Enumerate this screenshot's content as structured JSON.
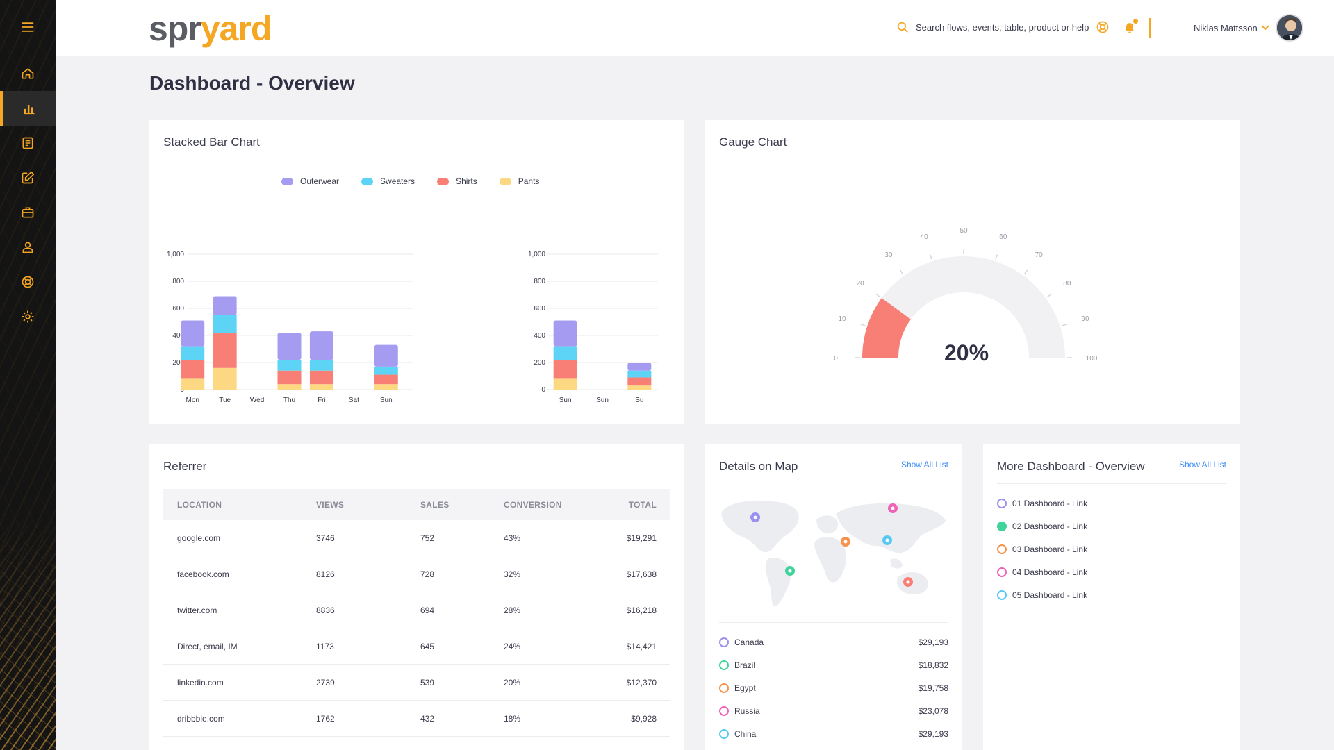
{
  "brand": {
    "part1": "spr",
    "part2": "yard",
    "accent": "#f5a623"
  },
  "header": {
    "search_placeholder": "Search flows, events, table, product or help",
    "user_name": "Niklas Mattsson"
  },
  "sidebar": {
    "items": [
      {
        "icon": "home-icon"
      },
      {
        "icon": "bar-chart-icon",
        "active": true
      },
      {
        "icon": "document-icon"
      },
      {
        "icon": "edit-icon"
      },
      {
        "icon": "briefcase-icon"
      },
      {
        "icon": "user-icon"
      },
      {
        "icon": "support-icon"
      },
      {
        "icon": "gear-icon"
      }
    ]
  },
  "page_title": "Dashboard - Overview",
  "stacked_card": {
    "title": "Stacked Bar Chart"
  },
  "gauge_card": {
    "title": "Gauge Chart"
  },
  "referrer": {
    "title": "Referrer",
    "columns": [
      "LOCATION",
      "VIEWS",
      "SALES",
      "CONVERSION",
      "TOTAL"
    ],
    "rows": [
      [
        "google.com",
        "3746",
        "752",
        "43%",
        "$19,291"
      ],
      [
        "facebook.com",
        "8126",
        "728",
        "32%",
        "$17,638"
      ],
      [
        "twitter.com",
        "8836",
        "694",
        "28%",
        "$16,218"
      ],
      [
        "Direct, email, IM",
        "1173",
        "645",
        "24%",
        "$14,421"
      ],
      [
        "linkedin.com",
        "2739",
        "539",
        "20%",
        "$12,370"
      ],
      [
        "dribbble.com",
        "1762",
        "432",
        "18%",
        "$9,928"
      ]
    ]
  },
  "map_card": {
    "title": "Details on Map",
    "show_all": "Show All List",
    "countries": [
      {
        "name": "Canada",
        "value": "$29,193",
        "color": "#9b91f0"
      },
      {
        "name": "Brazil",
        "value": "$18,832",
        "color": "#40d39b"
      },
      {
        "name": "Egypt",
        "value": "$19,758",
        "color": "#f7934c"
      },
      {
        "name": "Russia",
        "value": "$23,078",
        "color": "#f062b7"
      },
      {
        "name": "China",
        "value": "$29,193",
        "color": "#57c9f2"
      }
    ]
  },
  "more_card": {
    "title": "More Dashboard - Overview",
    "show_all": "Show All List",
    "links": [
      {
        "label": "01 Dashboard - Link",
        "color": "#9b91f0",
        "filled": false
      },
      {
        "label": "02 Dashboard - Link",
        "color": "#40d39b",
        "filled": true
      },
      {
        "label": "03 Dashboard - Link",
        "color": "#f7934c",
        "filled": false
      },
      {
        "label": "04 Dashboard - Link",
        "color": "#f062b7",
        "filled": false
      },
      {
        "label": "05 Dashboard - Link",
        "color": "#57c9f2",
        "filled": false
      }
    ]
  },
  "chart_data": [
    {
      "type": "bar",
      "stacked": true,
      "title": "Stacked Bar Chart",
      "legend": [
        "Outerwear",
        "Sweaters",
        "Shirts",
        "Pants"
      ],
      "legend_placement": "top",
      "colors": [
        "#a59cf2",
        "#5dd4f5",
        "#f77f75",
        "#fdd882"
      ],
      "ylim": [
        0,
        1000
      ],
      "yticks": [
        "0",
        "200",
        "400",
        "600",
        "800",
        "1,000"
      ],
      "grid": true,
      "categories": [
        "Mon",
        "Tue",
        "Wed",
        "Thu",
        "Fri",
        "Sat",
        "Sun"
      ],
      "series": [
        {
          "name": "Outerwear",
          "values": [
            190,
            140,
            0,
            200,
            210,
            0,
            160
          ]
        },
        {
          "name": "Sweaters",
          "values": [
            100,
            130,
            0,
            80,
            80,
            0,
            60
          ]
        },
        {
          "name": "Shirts",
          "values": [
            140,
            260,
            0,
            100,
            100,
            0,
            70
          ]
        },
        {
          "name": "Pants",
          "values": [
            80,
            160,
            0,
            40,
            40,
            0,
            40
          ]
        }
      ]
    },
    {
      "type": "bar",
      "stacked": true,
      "ylim": [
        0,
        1000
      ],
      "yticks": [
        "0",
        "200",
        "400",
        "600",
        "800",
        "1,000"
      ],
      "grid": true,
      "categories": [
        "Sun",
        "Sun",
        "Su"
      ],
      "series": [
        {
          "name": "Outerwear",
          "values": [
            190,
            0,
            60
          ]
        },
        {
          "name": "Sweaters",
          "values": [
            100,
            0,
            50
          ]
        },
        {
          "name": "Shirts",
          "values": [
            140,
            0,
            60
          ]
        },
        {
          "name": "Pants",
          "values": [
            80,
            0,
            30
          ]
        }
      ]
    },
    {
      "type": "gauge",
      "title": "Gauge Chart",
      "value": 20,
      "value_label": "20%",
      "min": 0,
      "max": 100,
      "ticks": [
        "0",
        "10",
        "20",
        "30",
        "40",
        "50",
        "60",
        "70",
        "80",
        "90",
        "100"
      ],
      "fill_color": "#f77f75",
      "track_color": "#f1f1f4"
    }
  ]
}
